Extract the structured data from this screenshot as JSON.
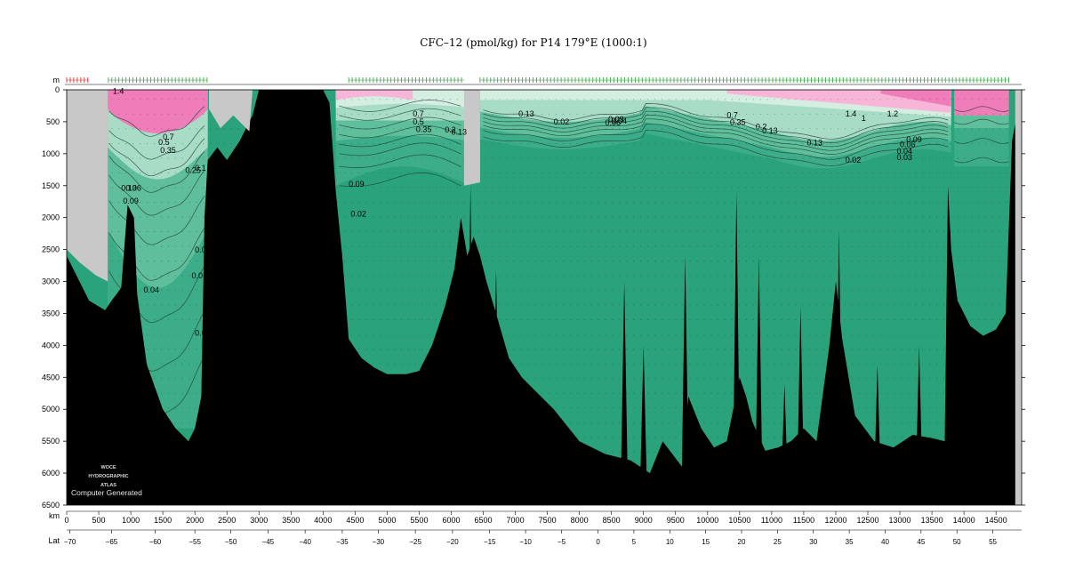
{
  "chart_data": {
    "type": "section-contour",
    "title": "CFC–12 (pmol/kg) for P14 179°E (1000:1)",
    "ylabel": "m",
    "xlabel": "km",
    "lat_label": "Lat",
    "xlim": [
      0,
      14900
    ],
    "ylim": [
      6500,
      0
    ],
    "x_ticks": [
      0,
      500,
      1000,
      1500,
      2000,
      2500,
      3000,
      3500,
      4000,
      4500,
      5000,
      5500,
      6000,
      6500,
      7000,
      7500,
      8000,
      8500,
      9000,
      9500,
      10000,
      10500,
      11000,
      11500,
      12000,
      12500,
      13000,
      13500,
      14000,
      14500
    ],
    "y_ticks": [
      0,
      500,
      1000,
      1500,
      2000,
      2500,
      3000,
      3500,
      4000,
      4500,
      5000,
      5500,
      6000,
      6500
    ],
    "lat_ticks": [
      {
        "km": 50,
        "label": "−70"
      },
      {
        "km": 700,
        "label": "−65"
      },
      {
        "km": 1380,
        "label": "−60"
      },
      {
        "km": 2000,
        "label": "−55"
      },
      {
        "km": 2560,
        "label": "−50"
      },
      {
        "km": 3140,
        "label": "−45"
      },
      {
        "km": 3720,
        "label": "−40"
      },
      {
        "km": 4300,
        "label": "−35"
      },
      {
        "km": 4860,
        "label": "−30"
      },
      {
        "km": 5440,
        "label": "−25"
      },
      {
        "km": 6020,
        "label": "−20"
      },
      {
        "km": 6600,
        "label": "−15"
      },
      {
        "km": 7160,
        "label": "−10"
      },
      {
        "km": 7720,
        "label": "−5"
      },
      {
        "km": 8290,
        "label": "0"
      },
      {
        "km": 8850,
        "label": "5"
      },
      {
        "km": 9410,
        "label": "10"
      },
      {
        "km": 9970,
        "label": "15"
      },
      {
        "km": 10530,
        "label": "20"
      },
      {
        "km": 11090,
        "label": "25"
      },
      {
        "km": 11650,
        "label": "30"
      },
      {
        "km": 12210,
        "label": "35"
      },
      {
        "km": 12770,
        "label": "40"
      },
      {
        "km": 13330,
        "label": "45"
      },
      {
        "km": 13890,
        "label": "50"
      },
      {
        "km": 14450,
        "label": "55"
      }
    ],
    "colors": {
      "deep_green": "#2aa27c",
      "mid_green": "#3cad88",
      "light_green": "#5fbf9c",
      "pale_green": "#a8dcc6",
      "very_pale": "#d4eee2",
      "pink": "#ef7db9",
      "light_pink": "#f7b6d8",
      "bathymetry": "#000000",
      "land_gray": "#c8c8c8",
      "station_green": "#2e9e3a",
      "station_red": "#cc2222"
    },
    "contour_labels": [
      {
        "km": 720,
        "depth": 60,
        "text": "1.4"
      },
      {
        "km": 1500,
        "depth": 780,
        "text": "0.7"
      },
      {
        "km": 1430,
        "depth": 860,
        "text": "0.5"
      },
      {
        "km": 1460,
        "depth": 990,
        "text": "0.35"
      },
      {
        "km": 1850,
        "depth": 1300,
        "text": "0.25"
      },
      {
        "km": 2000,
        "depth": 1270,
        "text": "0.1"
      },
      {
        "km": 850,
        "depth": 1580,
        "text": "0.13"
      },
      {
        "km": 920,
        "depth": 1580,
        "text": "0.06"
      },
      {
        "km": 880,
        "depth": 1780,
        "text": "0.09"
      },
      {
        "km": 2000,
        "depth": 2550,
        "text": "0.0"
      },
      {
        "km": 1950,
        "depth": 2950,
        "text": "0.0"
      },
      {
        "km": 1200,
        "depth": 3170,
        "text": "0.04"
      },
      {
        "km": 2000,
        "depth": 3850,
        "text": "0.0"
      },
      {
        "km": 5400,
        "depth": 420,
        "text": "0.7"
      },
      {
        "km": 5400,
        "depth": 540,
        "text": "0.5"
      },
      {
        "km": 5450,
        "depth": 660,
        "text": "0.35"
      },
      {
        "km": 5900,
        "depth": 670,
        "text": "0.2"
      },
      {
        "km": 6000,
        "depth": 700,
        "text": "0.13"
      },
      {
        "km": 4400,
        "depth": 1520,
        "text": "0.09"
      },
      {
        "km": 4430,
        "depth": 1980,
        "text": "0.02"
      },
      {
        "km": 7050,
        "depth": 420,
        "text": "0.13"
      },
      {
        "km": 7600,
        "depth": 540,
        "text": "0.02"
      },
      {
        "km": 8450,
        "depth": 500,
        "text": "0.09"
      },
      {
        "km": 8400,
        "depth": 560,
        "text": "0.06"
      },
      {
        "km": 8500,
        "depth": 530,
        "text": "0.04"
      },
      {
        "km": 10300,
        "depth": 440,
        "text": "0.7"
      },
      {
        "km": 10350,
        "depth": 550,
        "text": "0.35"
      },
      {
        "km": 10750,
        "depth": 620,
        "text": "0.2"
      },
      {
        "km": 10850,
        "depth": 680,
        "text": "0.13"
      },
      {
        "km": 11550,
        "depth": 870,
        "text": "0.13"
      },
      {
        "km": 12150,
        "depth": 420,
        "text": "1.4"
      },
      {
        "km": 12400,
        "depth": 490,
        "text": "1"
      },
      {
        "km": 12800,
        "depth": 420,
        "text": "1.2"
      },
      {
        "km": 13100,
        "depth": 820,
        "text": "0.09"
      },
      {
        "km": 13000,
        "depth": 900,
        "text": "0.06"
      },
      {
        "km": 12950,
        "depth": 1000,
        "text": "0.04"
      },
      {
        "km": 12950,
        "depth": 1100,
        "text": "0.03"
      },
      {
        "km": 12150,
        "depth": 1140,
        "text": "0.02"
      }
    ],
    "logo_lines": [
      "WOCE",
      "HYDROGRAPHIC",
      "ATLAS"
    ],
    "logo_caption": "Computer Generated"
  }
}
